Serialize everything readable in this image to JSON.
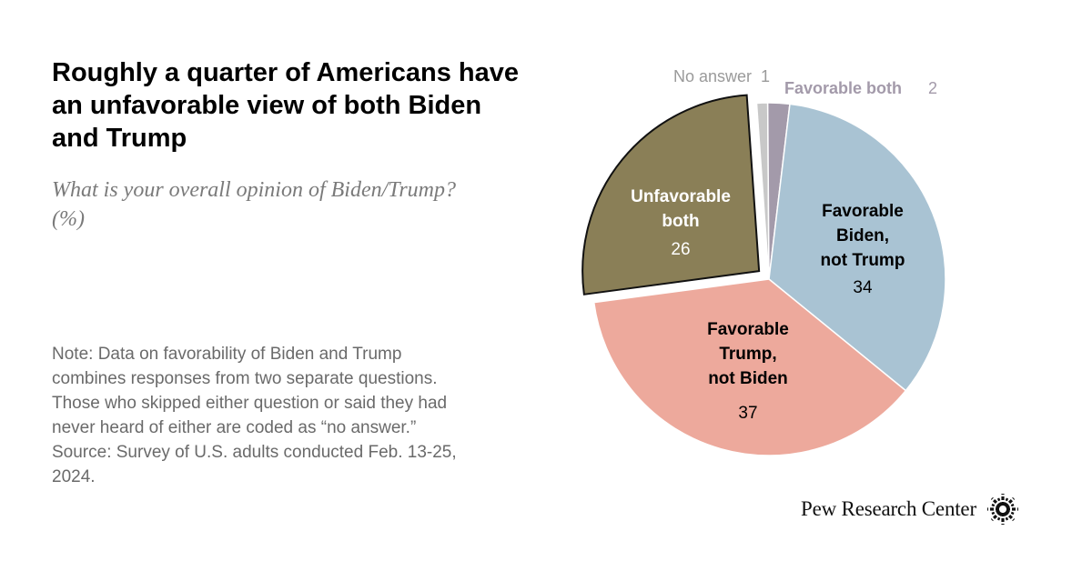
{
  "title": "Roughly a quarter of Americans have an unfavorable view of both Biden and Trump",
  "subtitle": "What is your overall opinion of Biden/Trump? (%)",
  "note": "Note: Data on favorability of Biden and Trump combines responses from two separate questions. Those who skipped either question or said they had never heard of either are coded as “no answer.” Source: Survey of U.S. adults conducted Feb. 13-25, 2024.",
  "brand": "Pew Research Center",
  "chart_data": {
    "type": "pie",
    "title": "What is your overall opinion of Biden/Trump? (%)",
    "slices": [
      {
        "name": "No answer",
        "label_lines": [
          "No answer"
        ],
        "value": 1,
        "color": "#c8c8c8",
        "label_color": "#9a9a9a",
        "text_color": "#000000",
        "exploded": false
      },
      {
        "name": "Favorable both",
        "label_lines": [
          "Favorable both"
        ],
        "value": 2,
        "color": "#a39aaa",
        "label_color": "#a39aaa",
        "text_color": "#000000",
        "exploded": false
      },
      {
        "name": "Favorable Biden, not Trump",
        "label_lines": [
          "Favorable",
          "Biden,",
          "not Trump"
        ],
        "value": 34,
        "color": "#a9c3d3",
        "text_color": "#000000",
        "exploded": false
      },
      {
        "name": "Favorable Trump, not Biden",
        "label_lines": [
          "Favorable",
          "Trump,",
          "not Biden"
        ],
        "value": 37,
        "color": "#eda99c",
        "text_color": "#000000",
        "exploded": false
      },
      {
        "name": "Unfavorable both",
        "label_lines": [
          "Unfavorable",
          "both"
        ],
        "value": 26,
        "color": "#8a7f57",
        "text_color": "#ffffff",
        "exploded": true
      }
    ]
  }
}
